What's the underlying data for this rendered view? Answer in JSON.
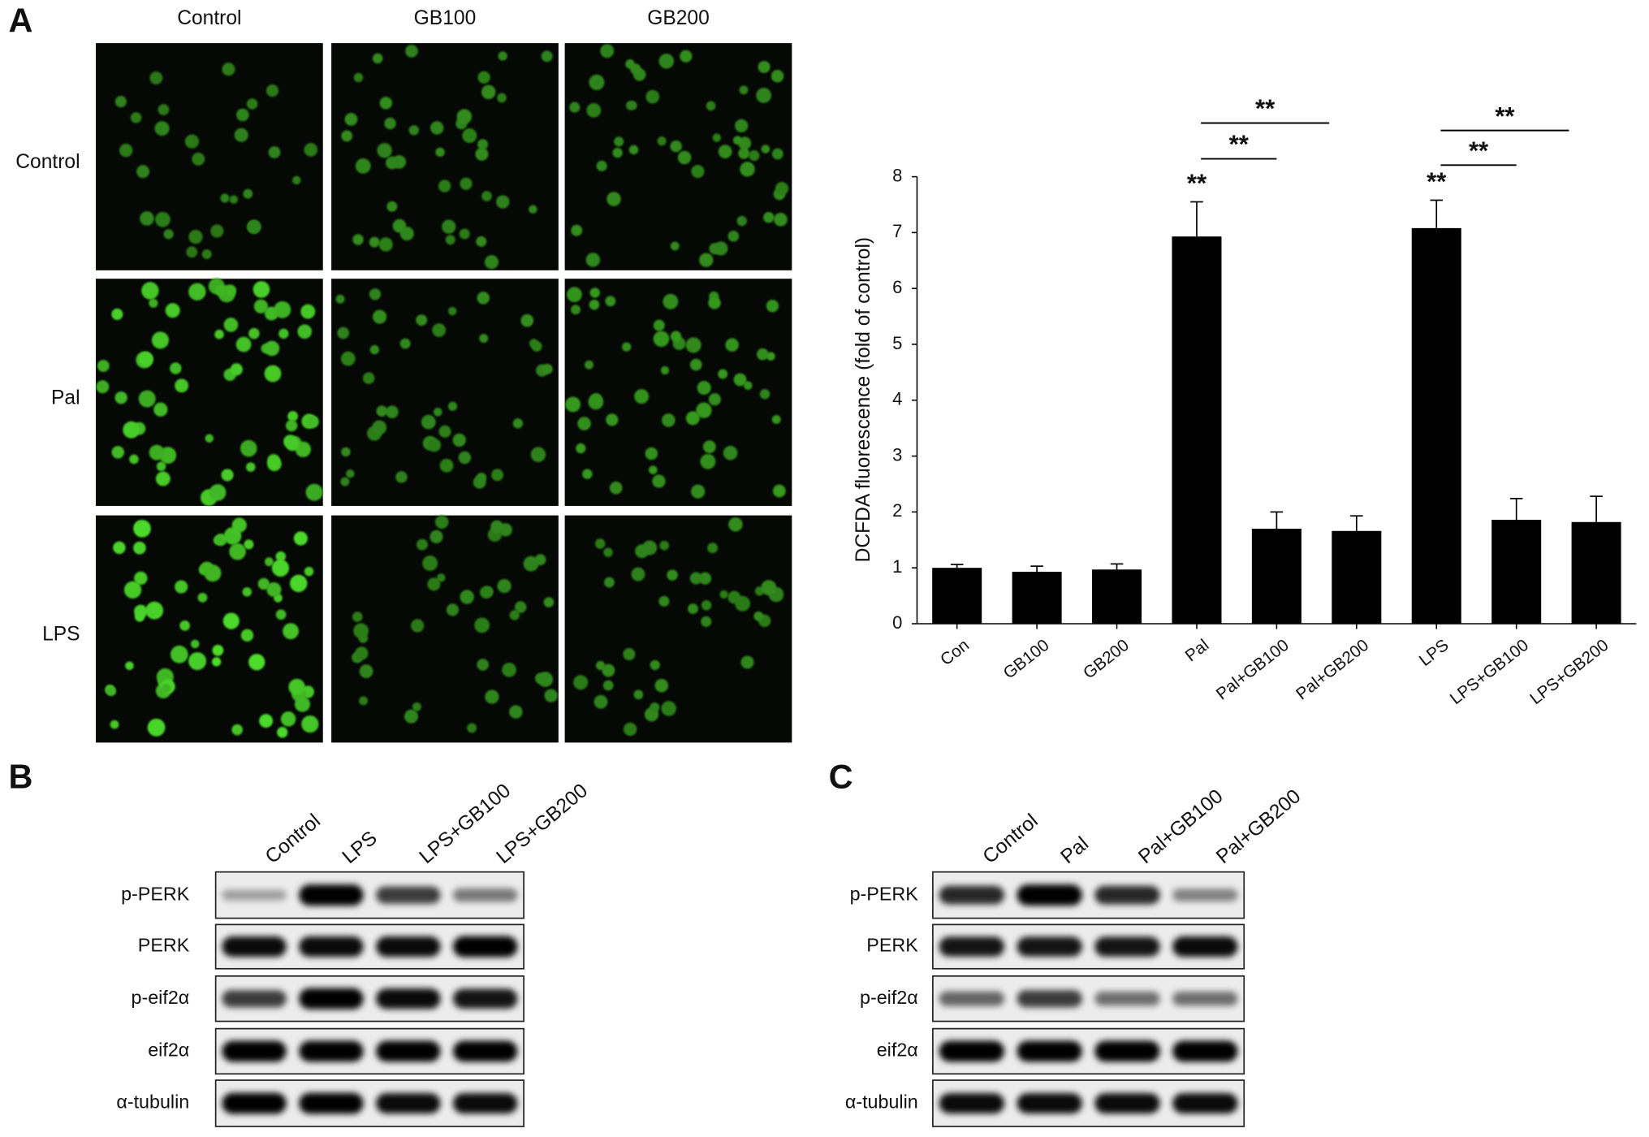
{
  "panel_a": {
    "label": "A",
    "columns": [
      "Control",
      "GB100",
      "GB200"
    ],
    "rows": [
      "Control",
      "Pal",
      "LPS"
    ]
  },
  "chart_data": {
    "type": "bar",
    "ylabel": "DCFDA fluorescence (fold of control)",
    "categories": [
      "Con",
      "GB100",
      "GB200",
      "Pal",
      "Pal+GB100",
      "Pal+GB200",
      "LPS",
      "LPS+GB100",
      "LPS+GB200"
    ],
    "values": [
      1.0,
      0.93,
      0.97,
      6.93,
      1.7,
      1.66,
      7.08,
      1.86,
      1.82
    ],
    "errors": [
      0.06,
      0.1,
      0.1,
      0.62,
      0.3,
      0.27,
      0.5,
      0.38,
      0.46
    ],
    "color": "#000000",
    "ylim": [
      0,
      8
    ],
    "yticks": [
      0,
      1,
      2,
      3,
      4,
      5,
      6,
      7,
      8
    ],
    "annotations": [
      "**",
      "**",
      "**",
      "**",
      "**",
      "**"
    ]
  },
  "panel_b": {
    "label": "B",
    "lanes": [
      "Control",
      "LPS",
      "LPS+GB100",
      "LPS+GB200"
    ],
    "proteins": [
      "p-PERK",
      "PERK",
      "p-eif2α",
      "eif2α",
      "α-tubulin"
    ]
  },
  "panel_c": {
    "label": "C",
    "lanes": [
      "Control",
      "Pal",
      "Pal+GB100",
      "Pal+GB200"
    ],
    "proteins": [
      "p-PERK",
      "PERK",
      "p-eif2α",
      "eif2α",
      "α-tubulin"
    ]
  }
}
